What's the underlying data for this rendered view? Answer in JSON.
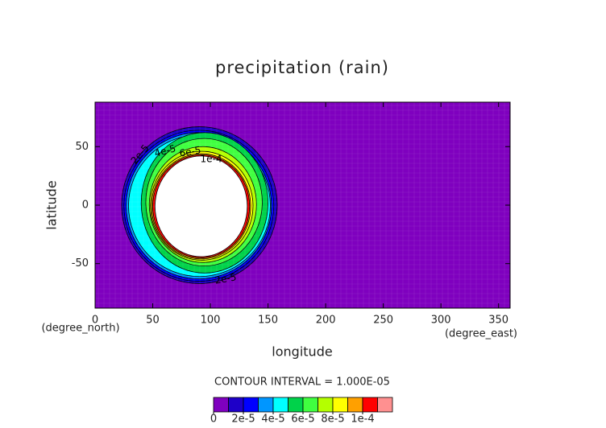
{
  "chart_data": {
    "type": "contour",
    "title": "precipitation (rain)",
    "xlabel": "longitude",
    "ylabel": "latitude",
    "xunit": "(degree_east)",
    "yunit": "(degree_north)",
    "xlim": [
      0,
      360
    ],
    "ylim": [
      -88,
      88
    ],
    "xticks": [
      0,
      50,
      100,
      150,
      200,
      250,
      300,
      350
    ],
    "yticks": [
      -50,
      0,
      50
    ],
    "background": "#7f00bf",
    "grid": true,
    "contours": [
      {
        "level": 1e-05,
        "color": "#1e00c8",
        "lon": [
          23,
          158
        ],
        "lat": [
          -67,
          67
        ]
      },
      {
        "level": 2e-05,
        "color": "#0000ff",
        "lon": [
          25,
          155
        ],
        "lat": [
          -65,
          64
        ]
      },
      {
        "level": 3e-05,
        "color": "#0096ff",
        "lon": [
          27,
          153
        ],
        "lat": [
          -63,
          62
        ]
      },
      {
        "level": 4e-05,
        "color": "#00ffff",
        "lon": [
          29,
          152
        ],
        "lat": [
          -61,
          60
        ]
      },
      {
        "level": 5e-05,
        "color": "#00d24a",
        "lon": [
          40,
          150
        ],
        "lat": [
          -58,
          62
        ]
      },
      {
        "level": 6e-05,
        "color": "#40ff40",
        "lon": [
          44,
          145
        ],
        "lat": [
          -52,
          57
        ]
      },
      {
        "level": 7e-05,
        "color": "#b4ff00",
        "lon": [
          47,
          140
        ],
        "lat": [
          -49,
          50
        ]
      },
      {
        "level": 8e-05,
        "color": "#ffff00",
        "lon": [
          48,
          137
        ],
        "lat": [
          -47,
          46
        ]
      },
      {
        "level": 9e-05,
        "color": "#ffa000",
        "lon": [
          49,
          135
        ],
        "lat": [
          -46,
          44
        ]
      },
      {
        "level": 0.0001,
        "color": "#ff0000",
        "lon": [
          50,
          134
        ],
        "lat": [
          -45,
          43
        ]
      },
      {
        "level": 0.00011,
        "color": "#ffffff",
        "lon": [
          52,
          132
        ],
        "lat": [
          -44,
          42
        ]
      }
    ],
    "contour_labels": [
      "2e-5",
      "4e-5",
      "6e-5",
      "1e-4",
      "2e-5"
    ],
    "interval_text": "CONTOUR INTERVAL = 1.000E-05",
    "colorbar": {
      "colors": [
        "#7f00bf",
        "#1e00c8",
        "#0000ff",
        "#0096ff",
        "#00ffff",
        "#00d24a",
        "#40ff40",
        "#b4ff00",
        "#ffff00",
        "#ffa000",
        "#ff0000",
        "#ff9090"
      ],
      "lim": [
        0,
        0.00012
      ],
      "ticks": [
        0,
        {
          "value": 2e-05,
          "label": "2e-5"
        },
        {
          "value": 4e-05,
          "label": "4e-5"
        },
        {
          "value": 6e-05,
          "label": "6e-5"
        },
        {
          "value": 8e-05,
          "label": "8e-5"
        },
        {
          "value": 0.0001,
          "label": "1e-4"
        }
      ]
    }
  }
}
